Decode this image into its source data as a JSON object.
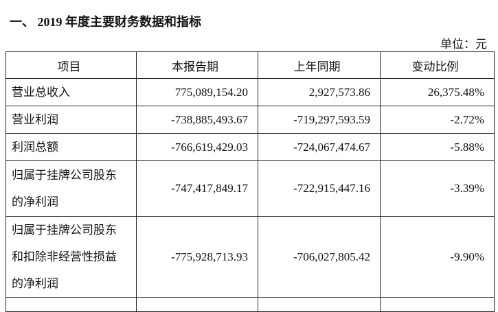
{
  "title": "一、 2019 年度主要财务数据和指标",
  "unit": "单位：元",
  "table": {
    "headers": [
      "项目",
      "本报告期",
      "上年同期",
      "变动比例"
    ],
    "rows": [
      {
        "item": "营业总收入",
        "current": "775,089,154.20",
        "prior": "2,927,573.86",
        "change": "26,375.48%"
      },
      {
        "item": "营业利润",
        "current": "-738,885,493.67",
        "prior": "-719,297,593.59",
        "change": "-2.72%"
      },
      {
        "item": "利润总额",
        "current": "-766,619,429.03",
        "prior": "-724,067,474.67",
        "change": "-5.88%"
      },
      {
        "item": "归属于挂牌公司股东的净利润",
        "current": "-747,417,849.17",
        "prior": "-722,915,447.16",
        "change": "-3.39%"
      },
      {
        "item": "归属于挂牌公司股东和扣除非经营性损益的净利润",
        "current": "-775,928,713.93",
        "prior": "-706,027,805.42",
        "change": "-9.90%"
      }
    ]
  }
}
